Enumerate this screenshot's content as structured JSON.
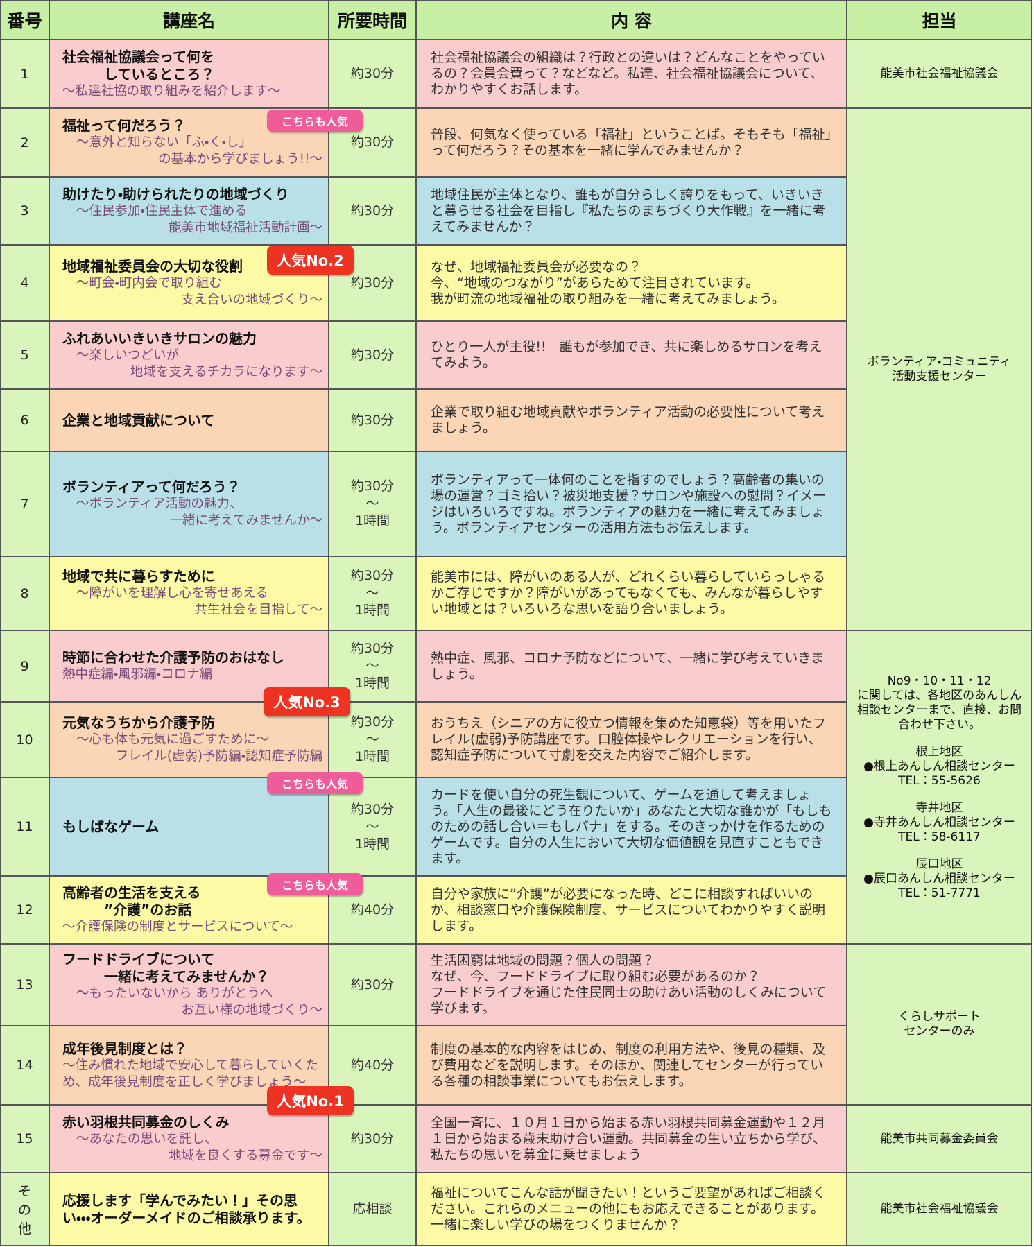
{
  "header": [
    "番号",
    "講座名",
    "所要時間",
    "内 容",
    "担当"
  ],
  "rows": [
    {
      "no": [
        "1"
      ],
      "title": [
        "社会福祉協議会って何を",
        "しているところ？"
      ],
      "subtitle": [
        "～私達社協の取り組みを紹介します～"
      ],
      "time": [
        "約30分"
      ],
      "content": "社会福祉協議会の組織は？行政との違いは？どんなことをやっているの？会員会費って？などなど。私達、社会福祉協議会について、わかりやすくお話します。"
    },
    {
      "no": [
        "2"
      ],
      "title": [
        "福祉って何だろう？"
      ],
      "subtitle": [
        "～意外と知らない「ふ・く・し」",
        "の基本から学びましょう!!～"
      ],
      "time": [
        "約30分"
      ],
      "content": "普段、何気なく使っている「福祉」ということば。そもそも「福祉」って何だろう？その基本を一緒に学んでみませんか？"
    },
    {
      "no": [
        "3"
      ],
      "title": [
        "助けたり・助けられたりの地域づくり"
      ],
      "subtitle": [
        "～住民参加・住民主体で進める",
        "能美市地域福祉活動計画～"
      ],
      "time": [
        "約30分"
      ],
      "content": "地域住民が主体となり、誰もが自分らしく誇りをもって、いきいきと暮らせる社会を目指し『私たちのまちづくり大作戦』を一緒に考えてみませんか？"
    },
    {
      "no": [
        "4"
      ],
      "title": [
        "地域福祉委員会の大切な役割"
      ],
      "subtitle": [
        "～町会・町内会で取り組む",
        "支え合いの地域づくり～"
      ],
      "time": [
        "約30分"
      ],
      "content": "なぜ、地域福祉委員会が必要なの？\n今、“地域のつながり”があらためて注目されています。\n我が町流の地域福祉の取り組みを一緒に考えてみましょう。"
    },
    {
      "no": [
        "5"
      ],
      "title": [
        "ふれあいいきいきサロンの魅力"
      ],
      "subtitle": [
        "～楽しいつどいが",
        "地域を支えるチカラになります～"
      ],
      "time": [
        "約30分"
      ],
      "content": "ひとり一人が主役!!　誰もが参加でき、共に楽しめるサロンを考えてみよう。"
    },
    {
      "no": [
        "6"
      ],
      "title": [
        "企業と地域貢献について"
      ],
      "subtitle": [],
      "time": [
        "約30分"
      ],
      "content": "企業で取り組む地域貢献やボランティア活動の必要性について考えましょう。"
    },
    {
      "no": [
        "7"
      ],
      "title": [
        "ボランティアって何だろう？"
      ],
      "subtitle": [
        "～ボランティア活動の魅力、",
        "一緒に考えてみませんか～"
      ],
      "time": [
        "約30分",
        "～",
        "1時間"
      ],
      "content": "ボランティアって一体何のことを指すのでしょう？高齢者の集いの場の運営？ゴミ拾い？被災地支援？サロンや施設への慰問？イメージはいろいろですね。ボランティアの魅力を一緒に考えてみましょう。ボランティアセンターの活用方法もお伝えします。"
    },
    {
      "no": [
        "8"
      ],
      "title": [
        "地域で共に暮らすために"
      ],
      "subtitle": [
        "～障がいを理解し心を寄せあえる",
        "共生社会を目指して～"
      ],
      "time": [
        "約30分",
        "～",
        "1時間"
      ],
      "content": "能美市には、障がいのある人が、どれくらい暮らしていらっしゃるかご存じですか？障がいがあってもなくても、みんなが暮らしやすい地域とは？いろいろな思いを語り合いましょう。"
    },
    {
      "no": [
        "9"
      ],
      "title": [
        "時節に合わせた介護予防のおはなし"
      ],
      "subtitle": [
        "熱中症編・風邪編・コロナ編"
      ],
      "time": [
        "約30分",
        "～",
        "1時間"
      ],
      "content": "熱中症、風邪、コロナ予防などについて、一緒に学び考えていきましょう。"
    },
    {
      "no": [
        "10"
      ],
      "title": [
        "元気なうちから介護予防"
      ],
      "subtitle": [
        "～心も体も元気に過ごすために～",
        "フレイル(虚弱)予防編・認知症予防編"
      ],
      "time": [
        "約30分",
        "～",
        "1時間"
      ],
      "content": "おうちえ（シニアの方に役立つ情報を集めた知恵袋）等を用いたフレイル(虚弱)予防講座です。口腔体操やレクリエーションを行い、認知症予防について寸劇を交えた内容でご紹介します。"
    },
    {
      "no": [
        "11"
      ],
      "title": [
        "もしばなゲーム"
      ],
      "subtitle": [],
      "time": [
        "約30分",
        "～",
        "1時間"
      ],
      "content": "カードを使い自分の死生観について、ゲームを通して考えましょう。「人生の最後にどう在りたいか」あなたと大切な誰かが「もしものための話し合い＝もしバナ」をする。そのきっかけを作るためのゲームです。自分の人生において大切な価値観を見直すこともできます。"
    },
    {
      "no": [
        "12"
      ],
      "title": [
        "高齢者の生活を支える",
        "”介護”のお話"
      ],
      "subtitle": [
        "～介護保険の制度とサービスについて～"
      ],
      "time": [
        "約40分"
      ],
      "content": "自分や家族に”介護”が必要になった時、どこに相談すればいいのか、相談窓口や介護保険制度、サービスについてわかりやすく説明します。"
    },
    {
      "no": [
        "13"
      ],
      "title": [
        "フードドライブについて",
        "一緒に考えてみませんか？"
      ],
      "subtitle": [
        "～もったいないから ありがとうへ",
        "お互い様の地域づくり～"
      ],
      "time": [
        "約30分"
      ],
      "content": "生活困窮は地域の問題？個人の問題？\nなぜ、今、フードドライブに取り組む必要があるのか？\nフードドライブを通じた住民同士の助けあい活動のしくみについて学びます。"
    },
    {
      "no": [
        "14"
      ],
      "title": [
        "成年後見制度とは？"
      ],
      "subtitle": [
        "～住み慣れた地域で安心して暮らしていくため、成年後見制度を正しく学びましょう～"
      ],
      "time": [
        "約40分"
      ],
      "content": "制度の基本的な内容をはじめ、制度の利用方法や、後見の種類、及び費用などを説明します。そのほか、関連してセンターが行っている各種の相談事業についてもお伝えします。"
    },
    {
      "no": [
        "15"
      ],
      "title": [
        "赤い羽根共同募金のしくみ"
      ],
      "subtitle": [
        "～あなたの思いを託し、",
        "地域を良くする募金です～"
      ],
      "time": [
        "約30分"
      ],
      "content": "全国一斉に、１０月１日から始まる赤い羽根共同募金運動や１２月１日から始まる歳末助け合い運動。共同募金の生い立ちから学び、私たちの思いを募金に乗せましょう"
    },
    {
      "no": [
        "そ",
        "の",
        "他"
      ],
      "title": [
        "応援します「学んでみたい！」その思い・・・オーダーメイドのご相談承ります。"
      ],
      "subtitle": [],
      "time": [
        "応相談"
      ],
      "content": "福祉についてこんな話が聞きたい！というご要望があればご相談ください。これらのメニューの他にもお応えできることがあります。一緒に楽しい学びの場をつくりませんか？"
    }
  ],
  "departments": [
    {
      "lines": [
        "能美市社会福祉協議会"
      ]
    },
    {
      "lines": [
        "ボランティア・コミュニティ",
        "活動支援センター"
      ]
    },
    {
      "lines": [
        "No9・10・11・12",
        "に関しては、各地区のあんしん",
        "相談センターまで、直接、お問",
        "合わせ下さい。"
      ],
      "contacts": [
        {
          "area": "根上地区",
          "center": "●根上あんしん相談センター",
          "tel": "TEL：55-5626"
        },
        {
          "area": "寺井地区",
          "center": "●寺井あんしん相談センター",
          "tel": "TEL：58-6117"
        },
        {
          "area": "辰口地区",
          "center": "●辰口あんしん相談センター",
          "tel": "TEL：51-7771"
        }
      ]
    },
    {
      "lines": [
        "くらしサポート",
        "センターのみ"
      ]
    },
    {
      "lines": [
        "能美市共同募金委員会"
      ]
    },
    {
      "lines": [
        "能美市社会福祉協議会"
      ]
    }
  ],
  "badges": [
    "こちらも人気",
    "人気No.2",
    "人気No.3",
    "こちらも人気",
    "こちらも人気",
    "人気No.1"
  ]
}
